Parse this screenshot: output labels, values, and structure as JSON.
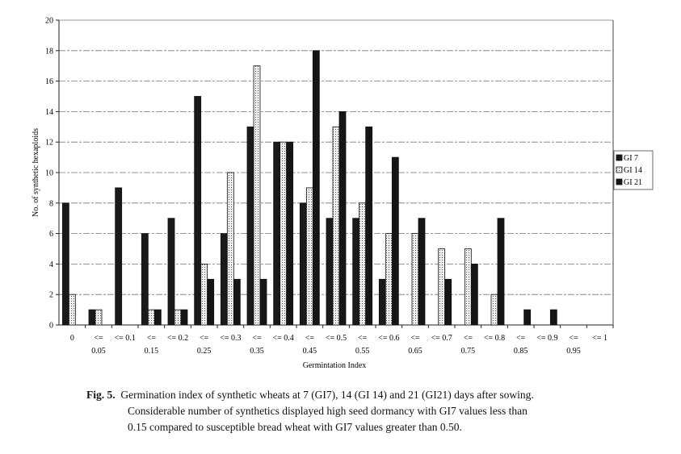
{
  "chart_data": {
    "type": "bar",
    "title": "",
    "xlabel": "Germintation Index",
    "ylabel": "No. of synthetic hexaploids",
    "ylim": [
      0,
      20
    ],
    "yticks": [
      0,
      2,
      4,
      6,
      8,
      10,
      12,
      14,
      16,
      18,
      20
    ],
    "grid": true,
    "legend_position": "right",
    "categories": [
      "0",
      "<= 0.05",
      "<= 0.1",
      "<= 0.15",
      "<= 0.2",
      "<= 0.25",
      "<= 0.3",
      "<= 0.35",
      "<= 0.4",
      "<= 0.45",
      "<= 0.5",
      "<= 0.55",
      "<= 0.6",
      "<= 0.65",
      "<= 0.7",
      "<= 0.75",
      "<= 0.8",
      "<= 0.85",
      "<= 0.9",
      "<= 0.95",
      "<= 1"
    ],
    "series": [
      {
        "name": "GI 7",
        "color": "#1a1a1a",
        "pattern": "solid",
        "values": [
          8,
          1,
          9,
          6,
          7,
          15,
          6,
          13,
          12,
          8,
          7,
          7,
          3,
          0,
          0,
          0,
          0,
          0,
          0,
          0,
          0
        ]
      },
      {
        "name": "GI 14",
        "color": "#e8e8e8",
        "pattern": "dotted",
        "values": [
          2,
          1,
          0,
          1,
          1,
          4,
          10,
          17,
          12,
          9,
          13,
          8,
          6,
          6,
          5,
          5,
          2,
          0,
          0,
          0,
          0
        ]
      },
      {
        "name": "GI 21",
        "color": "#151515",
        "pattern": "solid",
        "values": [
          0,
          0,
          0,
          1,
          1,
          3,
          3,
          3,
          12,
          18,
          14,
          13,
          11,
          7,
          3,
          4,
          7,
          1,
          1,
          0,
          0
        ]
      }
    ]
  },
  "caption": {
    "label": "Fig. 5.",
    "lines": [
      "Germination index of synthetic wheats at 7 (GI7), 14 (GI 14) and 21 (GI21) days after sowing.",
      "Considerable number of synthetics displayed high seed dormancy with GI7 values less than",
      "0.15 compared to susceptible bread wheat with GI7 values greater than 0.50."
    ]
  }
}
